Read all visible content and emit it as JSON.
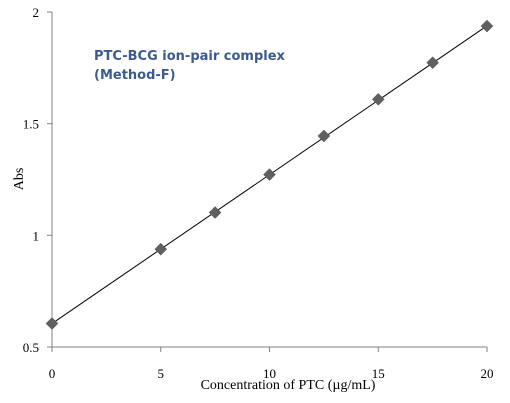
{
  "chart_data": {
    "type": "scatter",
    "annotation": [
      "PTC-BCG ion-pair complex",
      "(Method-F)"
    ],
    "xlabel": "Concentration of PTC (µg/mL)",
    "ylabel": "Abs",
    "xlim": [
      0,
      20
    ],
    "ylim": [
      0.5,
      2
    ],
    "x_ticks": [
      "0",
      "5",
      "10",
      "15",
      "20"
    ],
    "y_ticks": [
      "0.5",
      "1",
      "1.5",
      "2"
    ],
    "grid": false,
    "legend": "none",
    "marker": "diamond",
    "series": [
      {
        "x": [
          0,
          5,
          7.5,
          10,
          12.5,
          15,
          17.5,
          20
        ],
        "y": [
          0.605,
          0.938,
          1.102,
          1.272,
          1.445,
          1.609,
          1.773,
          1.937
        ]
      }
    ],
    "trendline": {
      "x": [
        0,
        20
      ],
      "y": [
        0.605,
        1.938
      ]
    },
    "colors": {
      "marker": "#606060",
      "line": "#000000",
      "annotation": "#3B5B8F"
    }
  }
}
